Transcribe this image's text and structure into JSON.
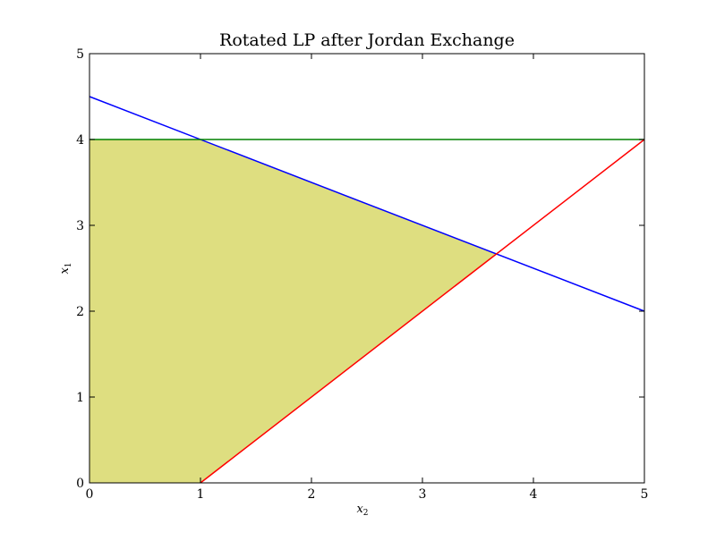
{
  "chart_data": {
    "type": "line",
    "title": "Rotated LP after Jordan Exchange",
    "xlabel": "x",
    "xlabel_sub": "2",
    "ylabel": "x",
    "ylabel_sub": "1",
    "xlim": [
      0,
      5
    ],
    "ylim": [
      0,
      5
    ],
    "x_ticks": [
      "0",
      "1",
      "2",
      "3",
      "4",
      "5"
    ],
    "y_ticks": [
      "0",
      "1",
      "2",
      "3",
      "4",
      "5"
    ],
    "grid": false,
    "series": [
      {
        "color": "#0000ff",
        "points": [
          [
            0,
            4.5
          ],
          [
            5,
            2
          ]
        ]
      },
      {
        "color": "#008000",
        "points": [
          [
            0,
            4
          ],
          [
            5,
            4
          ]
        ]
      },
      {
        "color": "#ff0000",
        "points": [
          [
            1,
            0
          ],
          [
            5,
            4
          ]
        ]
      }
    ],
    "feasible_region": {
      "color": "#dede80",
      "points": [
        [
          0,
          0
        ],
        [
          1,
          0
        ],
        [
          3.667,
          2.667
        ],
        [
          1,
          4
        ],
        [
          0,
          4
        ]
      ]
    }
  }
}
